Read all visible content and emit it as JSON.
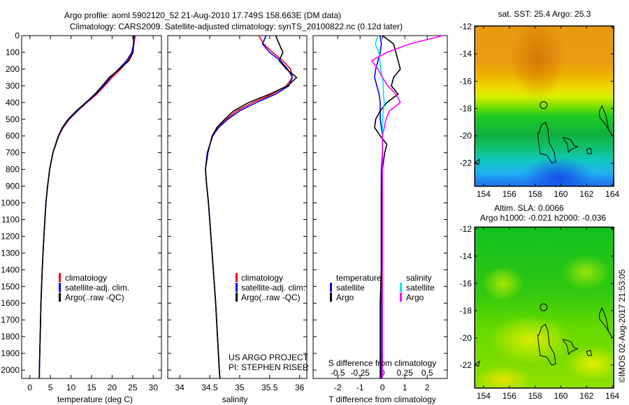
{
  "title_line1": "Argo profile: aoml 5902120_52 21-Aug-2010 17.749S 158.663E (DM data)",
  "title_line2": "Climatology: CARS2009. Satellite-adjusted climatology: synTS_20100822.nc (0.12d later)",
  "credits": {
    "project": "US ARGO PROJECT",
    "pi": "PI: STEPHEN RISER",
    "stamp": "©IMOS 02-Aug-2017 21:53:05"
  },
  "legend_profiles": {
    "climatology": "climatology",
    "satellite": "satellite-adj. clim.",
    "argo": "Argo(..raw -QC)"
  },
  "legend_diff": {
    "temperature": "temperature",
    "salinity": "salinity",
    "t_sat": "satellite",
    "t_argo": "Argo",
    "s_sat": "satellite",
    "s_argo": "Argo"
  },
  "colors": {
    "climatology": "#ff0000",
    "satellite": "#0000ff",
    "argo": "#000000",
    "s_satellite": "#00e8e8",
    "s_argo": "#ff00ff"
  },
  "chart_data": [
    {
      "type": "line",
      "id": "temperature",
      "xlabel": "temperature (deg C)",
      "ylabel": "",
      "xlim": [
        -2,
        32
      ],
      "ylim": [
        2050,
        0
      ],
      "xticks": [
        0,
        5,
        10,
        15,
        20,
        25,
        30
      ],
      "yticks": [
        0,
        100,
        200,
        300,
        400,
        500,
        600,
        700,
        800,
        900,
        1000,
        1100,
        1200,
        1300,
        1400,
        1500,
        1600,
        1700,
        1800,
        1900,
        2000
      ],
      "depth": [
        0,
        50,
        100,
        150,
        200,
        250,
        300,
        350,
        400,
        450,
        500,
        550,
        600,
        700,
        800,
        900,
        1000,
        1200,
        1400,
        1600,
        1800,
        2000,
        2050
      ],
      "series": [
        {
          "name": "climatology",
          "values": [
            25.6,
            25.3,
            24.9,
            23.8,
            22.1,
            20.0,
            18.2,
            16.3,
            13.9,
            11.6,
            9.6,
            8.1,
            7.0,
            5.6,
            4.8,
            4.3,
            3.9,
            3.4,
            3.0,
            2.7,
            2.5,
            2.3,
            2.3
          ]
        },
        {
          "name": "satellite-adj. clim.",
          "values": [
            25.4,
            25.2,
            24.8,
            23.5,
            21.6,
            19.6,
            17.9,
            16.0,
            13.8,
            11.5,
            9.5,
            8.0,
            7.0,
            5.6,
            4.8,
            4.3,
            3.9,
            3.4,
            3.0,
            2.7,
            2.5,
            2.3,
            2.3
          ]
        },
        {
          "name": "Argo(..raw -QC)",
          "values": [
            25.3,
            25.2,
            25.1,
            24.1,
            21.8,
            19.3,
            17.6,
            15.8,
            13.6,
            11.3,
            9.3,
            7.9,
            6.9,
            5.6,
            4.8,
            4.3,
            3.9,
            3.4,
            3.0,
            2.7,
            2.5,
            2.3,
            2.3
          ]
        }
      ]
    },
    {
      "type": "line",
      "id": "salinity",
      "xlabel": "salinity",
      "xlim": [
        33.8,
        36.12
      ],
      "ylim": [
        2050,
        0
      ],
      "xticks": [
        34,
        34.5,
        35,
        35.5,
        36
      ],
      "depth": [
        0,
        50,
        100,
        150,
        200,
        250,
        300,
        350,
        400,
        450,
        500,
        550,
        600,
        700,
        800,
        900,
        1000,
        1200,
        1400,
        1600,
        1800,
        2000,
        2050
      ],
      "series": [
        {
          "name": "climatology",
          "values": [
            35.32,
            35.4,
            35.55,
            35.72,
            35.85,
            35.88,
            35.78,
            35.55,
            35.22,
            34.95,
            34.78,
            34.64,
            34.55,
            34.46,
            34.43,
            34.45,
            34.48,
            34.52,
            34.56,
            34.6,
            34.63,
            34.66,
            34.67
          ]
        },
        {
          "name": "satellite-adj. clim.",
          "values": [
            35.44,
            35.38,
            35.5,
            35.68,
            35.8,
            35.88,
            35.82,
            35.6,
            35.28,
            35.0,
            34.8,
            34.65,
            34.55,
            34.46,
            34.43,
            34.45,
            34.48,
            34.52,
            34.56,
            34.6,
            34.63,
            34.66,
            34.67
          ]
        },
        {
          "name": "Argo(..raw -QC)",
          "values": [
            35.6,
            35.66,
            35.72,
            35.66,
            35.78,
            35.95,
            35.8,
            35.5,
            35.15,
            34.9,
            34.75,
            34.62,
            34.54,
            34.47,
            34.43,
            34.45,
            34.48,
            34.52,
            34.56,
            34.6,
            34.63,
            34.66,
            34.67
          ]
        }
      ]
    },
    {
      "type": "line",
      "id": "difference",
      "xlabel": "T difference from climatology",
      "x2label": "S difference from climatology",
      "xlim": [
        -3.1,
        2.9
      ],
      "x2lim": [
        -0.775,
        0.725
      ],
      "ylim": [
        2050,
        0
      ],
      "xticks": [
        -2,
        -1,
        0,
        1,
        2
      ],
      "x2ticks": [
        -0.5,
        -0.25,
        0,
        0.25,
        0.5
      ],
      "x2ticklabels": [
        "-0.5",
        "-0.25",
        "0",
        "0.25",
        "0.5"
      ],
      "depth": [
        0,
        50,
        100,
        150,
        200,
        250,
        300,
        350,
        400,
        450,
        500,
        550,
        600,
        650,
        700,
        800,
        900,
        1000,
        1200,
        1400,
        1600,
        1800,
        2000,
        2050
      ],
      "series": [
        {
          "name": "temperature satellite",
          "axis": "T",
          "values": [
            -0.1,
            -0.05,
            -0.1,
            -0.2,
            -0.3,
            -0.35,
            -0.25,
            -0.15,
            -0.1,
            -0.1,
            -0.1,
            -0.05,
            0,
            0,
            0,
            -0.05,
            -0.05,
            -0.05,
            -0.05,
            -0.05,
            -0.05,
            -0.05,
            -0.05,
            -0.05
          ]
        },
        {
          "name": "temperature Argo",
          "axis": "T",
          "values": [
            0.0,
            0.5,
            0.6,
            0.7,
            0.8,
            0.5,
            0.4,
            0.7,
            0.2,
            -0.1,
            -0.3,
            -0.35,
            -0.1,
            0.2,
            0.1,
            0.0,
            -0.05,
            -0.05,
            -0.05,
            -0.05,
            -0.1,
            -0.1,
            -0.1,
            -0.1
          ]
        },
        {
          "name": "salinity satellite",
          "axis": "S",
          "values": [
            -0.05,
            -0.08,
            -0.04,
            -0.03,
            -0.02,
            0.0,
            0.01,
            0.01,
            0.02,
            0.01,
            0.0,
            0.0,
            0.0,
            0.0,
            0.0,
            0.0,
            0.0,
            0.0,
            0.0,
            0.0,
            0.0,
            0.0,
            0.0,
            0.0
          ]
        },
        {
          "name": "salinity Argo",
          "axis": "S",
          "values": [
            0.68,
            0.3,
            0.05,
            -0.12,
            -0.05,
            0.0,
            0.06,
            0.15,
            0.2,
            0.08,
            0.04,
            0.02,
            0.0,
            0.0,
            0.0,
            0.0,
            0.0,
            0.0,
            0.0,
            0.0,
            0.0,
            0.0,
            0.0,
            0.0
          ]
        }
      ]
    },
    {
      "type": "heatmap",
      "id": "sst_map",
      "title": "sat. SST: 25.4 Argo: 25.3",
      "xlim": [
        153.3,
        164.1
      ],
      "ylim": [
        -23.7,
        -11.95
      ],
      "xticks": [
        154,
        156,
        158,
        160,
        162,
        164
      ],
      "yticks": [
        -12,
        -14,
        -16,
        -18,
        -20,
        -22
      ],
      "float_position": [
        158.663,
        -17.749
      ]
    },
    {
      "type": "heatmap",
      "id": "sla_map",
      "title": "Altim. SLA: 0.0066",
      "subtitle": "Argo h1000: -0.021 h2000: -0.036",
      "xlim": [
        153.3,
        164.1
      ],
      "ylim": [
        -23.7,
        -11.85
      ],
      "xticks": [
        154,
        156,
        158,
        160,
        162,
        164
      ],
      "yticks": [
        -12,
        -14,
        -16,
        -18,
        -20,
        -22
      ],
      "float_position": [
        158.663,
        -17.749
      ]
    }
  ]
}
